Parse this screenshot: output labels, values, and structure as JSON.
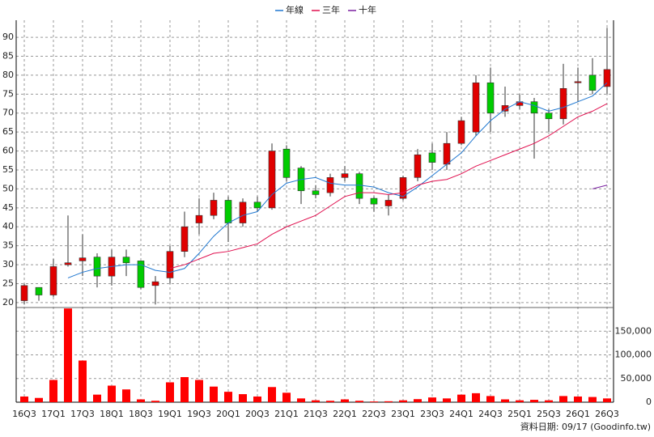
{
  "chart_data": {
    "type": "candlestick",
    "categories": [
      "16Q3",
      null,
      "17Q1",
      null,
      "17Q3",
      null,
      "18Q1",
      null,
      "18Q3",
      null,
      "19Q1",
      null,
      "19Q3",
      null,
      "20Q1",
      null,
      "20Q3",
      null,
      "21Q1",
      null,
      "21Q3",
      null,
      "22Q1",
      null,
      "22Q3",
      null,
      "23Q1",
      null,
      "23Q3",
      null,
      "24Q1",
      null,
      "24Q3",
      null,
      "25Q1",
      null,
      "25Q3",
      null,
      "26Q1",
      null,
      "26Q3"
    ],
    "open": [
      20.5,
      24,
      22,
      30,
      31,
      32,
      27,
      32,
      31,
      24.5,
      26.5,
      33.5,
      41,
      43,
      47,
      41,
      46.5,
      45,
      60.5,
      55.5,
      49.5,
      49,
      53,
      54,
      47.5,
      45.5,
      47.5,
      53,
      59.5,
      56.5,
      62,
      65,
      78,
      70.5,
      72,
      73,
      70,
      68.5,
      78,
      80,
      77
    ],
    "high": [
      25,
      24,
      31.5,
      43,
      38,
      33,
      34,
      34,
      31,
      27,
      35,
      44,
      47.5,
      49,
      48,
      47.5,
      48,
      62,
      61.5,
      56,
      51,
      54,
      56,
      54.5,
      48,
      48.5,
      53.5,
      60.5,
      62,
      65,
      69,
      80,
      82,
      77,
      75,
      74,
      71,
      83,
      82,
      84.5,
      92.5
    ],
    "low": [
      19.5,
      20.5,
      21.5,
      29.5,
      27,
      24,
      24.5,
      27,
      23.5,
      19.5,
      25,
      32,
      38,
      42,
      36,
      40,
      44,
      44.5,
      52,
      46,
      47.5,
      48,
      52,
      46,
      44,
      43,
      47,
      52,
      55,
      55,
      61.5,
      64,
      65,
      69,
      71,
      58,
      65,
      67,
      73,
      75,
      75
    ],
    "close": [
      24.5,
      22,
      29.5,
      30.5,
      31.8,
      27,
      32,
      30.5,
      24,
      25.5,
      33.5,
      40,
      43,
      47,
      41,
      46.5,
      45,
      60,
      53,
      49.5,
      48.5,
      53,
      54,
      47.5,
      46,
      47,
      53,
      59,
      57,
      62,
      68,
      78,
      70,
      72,
      73,
      70,
      68.5,
      76.5,
      78.3,
      76,
      81.5
    ],
    "up_color": "#e00000",
    "down_color": "#00cc00",
    "lines": [
      {
        "name": "年線",
        "color": "#1f77d0",
        "values": [
          null,
          null,
          null,
          26.5,
          28,
          29,
          29.5,
          30,
          30,
          28.5,
          28,
          29,
          33,
          37.5,
          41,
          43,
          44,
          48.5,
          51.5,
          52.5,
          53,
          51.5,
          51,
          51,
          50.5,
          49,
          48,
          50.5,
          53.5,
          56.5,
          59.5,
          64,
          68,
          71,
          73,
          72,
          70.5,
          71.5,
          73,
          74.5,
          78
        ]
      },
      {
        "name": "三年",
        "color": "#e0104f",
        "values": [
          null,
          null,
          null,
          null,
          null,
          null,
          null,
          null,
          null,
          null,
          29,
          30,
          31.5,
          33,
          33.5,
          34.5,
          35.5,
          38,
          40,
          41.5,
          43,
          45.5,
          48,
          49,
          49,
          48.5,
          49,
          51,
          52,
          52.5,
          54,
          56,
          57.5,
          59,
          60.5,
          62,
          64,
          66.5,
          69,
          70.5,
          72.5
        ]
      },
      {
        "name": "十年",
        "color": "#7a1fa0",
        "values": [
          null,
          null,
          null,
          null,
          null,
          null,
          null,
          null,
          null,
          null,
          null,
          null,
          null,
          null,
          null,
          null,
          null,
          null,
          null,
          null,
          null,
          null,
          null,
          null,
          null,
          null,
          null,
          null,
          null,
          null,
          null,
          null,
          null,
          null,
          null,
          null,
          null,
          null,
          null,
          50,
          51
        ]
      }
    ],
    "ylim": [
      18.7,
      94.5
    ],
    "yticks": [
      20,
      25,
      30,
      35,
      40,
      45,
      50,
      55,
      60,
      65,
      70,
      75,
      80,
      85,
      90
    ],
    "grid": true,
    "volume": {
      "color": "#ff0000",
      "values": [
        12000,
        9000,
        47000,
        198000,
        88000,
        16000,
        35000,
        27000,
        6000,
        3000,
        42000,
        53000,
        47000,
        33000,
        22000,
        17000,
        12000,
        32000,
        20000,
        8000,
        4000,
        3000,
        6000,
        3000,
        1500,
        2000,
        4000,
        6500,
        10000,
        8000,
        16000,
        19000,
        13000,
        6000,
        4000,
        5000,
        4000,
        13000,
        12000,
        11000,
        8000
      ],
      "ylim": [
        0,
        200000
      ],
      "yticks": [
        0,
        {
          "value": 50000,
          "label": "50,000"
        },
        {
          "value": 100000,
          "label": "100,000"
        },
        {
          "value": 150000,
          "label": "150,000"
        }
      ]
    },
    "footer": "資料日期: 09/17 (Goodinfo.tw)"
  }
}
